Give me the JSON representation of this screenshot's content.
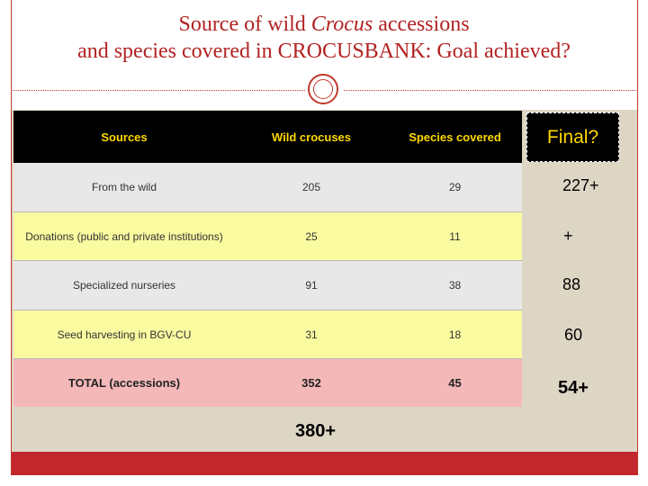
{
  "title": {
    "line1_pre": "Source of wild ",
    "line1_italic": "Crocus",
    "line1_post": " accessions",
    "line2": "and species covered in CROCUSBANK: Goal achieved?"
  },
  "table": {
    "headers": [
      "Sources",
      "Wild crocuses",
      "Species covered"
    ],
    "rows": [
      {
        "source": "From the wild",
        "wild": "205",
        "species": "29"
      },
      {
        "source": "Donations (public and private institutions)",
        "wild": "25",
        "species": "11"
      },
      {
        "source": "Specialized nurseries",
        "wild": "91",
        "species": "38"
      },
      {
        "source": "Seed harvesting in BGV-CU",
        "wild": "31",
        "species": "18"
      },
      {
        "source": "TOTAL (accessions)",
        "wild": "352",
        "species": "45"
      }
    ]
  },
  "final": {
    "label": "Final?",
    "values": [
      "227+",
      "+",
      "88",
      "60",
      "54+"
    ]
  },
  "total_extra": "380+",
  "colors": {
    "title": "#b22222",
    "header_bg": "#000000",
    "header_text": "#ffd700",
    "row_gray": "#e8e8e8",
    "row_yellow": "#fafaa0",
    "row_total": "#f4b8b8",
    "content_bg": "#ded6c5",
    "bottom_bar": "#c1272d"
  }
}
